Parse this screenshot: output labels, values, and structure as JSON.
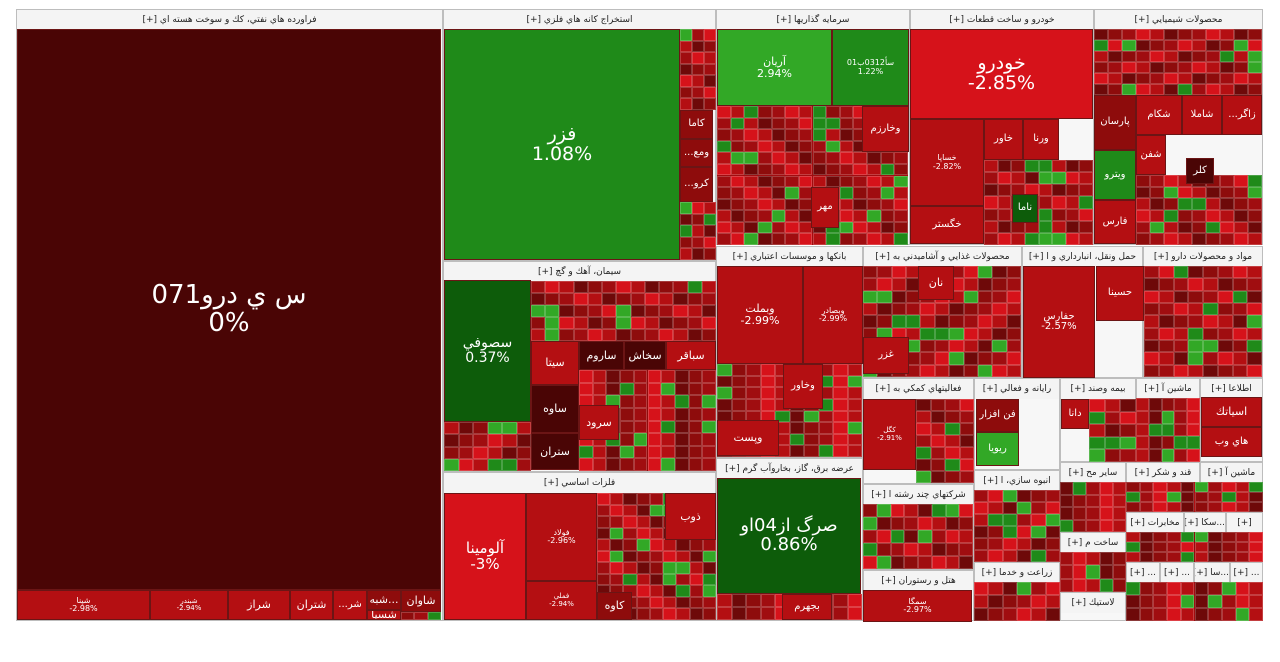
{
  "chart_data": {
    "type": "treemap",
    "colors": {
      "deep": "#4a0505",
      "dark": "#8e0c0c",
      "red": "#b40f12",
      "bright": "#d6121a",
      "lgreen": "#32a826",
      "green": "#1f8a19",
      "dgreen": "#0d5c0a"
    },
    "sectors": [
      {
        "name": "فراورده هاي نفتي، كك و سوخت هسته اي [+]",
        "box": [
          0,
          0
        ],
        "tiles": [
          {
            "name": "س ي درو071",
            "pct": "0%",
            "color": "deep",
            "fs": 26,
            "pos": [
              17,
              29,
              424,
              561
            ]
          },
          {
            "name": "شپنا",
            "pct": "-2.98%",
            "color": "red",
            "fs": 8,
            "pos": [
              17,
              590,
              133,
              30
            ]
          },
          {
            "name": "شبندر",
            "pct": "-2.94%",
            "color": "red",
            "fs": 7,
            "pos": [
              150,
              590,
              78,
              30
            ]
          },
          {
            "name": "شراز",
            "pct": "",
            "color": "red",
            "fs": 11,
            "pos": [
              228,
              590,
              62,
              30
            ]
          },
          {
            "name": "شتران",
            "pct": "",
            "color": "red",
            "fs": 11,
            "pos": [
              290,
              590,
              43,
              30
            ]
          },
          {
            "name": "...شر",
            "pct": "",
            "color": "red",
            "fs": 10,
            "pos": [
              333,
              590,
              34,
              30
            ]
          },
          {
            "name": "شبه...",
            "pct": "",
            "color": "dark",
            "fs": 11,
            "pos": [
              367,
              590,
              34,
              20
            ]
          },
          {
            "name": "شسپا",
            "pct": "",
            "color": "red",
            "fs": 11,
            "pos": [
              367,
              610,
              34,
              10
            ]
          },
          {
            "name": "شاوان",
            "pct": "",
            "color": "dark",
            "fs": 11,
            "pos": [
              401,
              590,
              40,
              22
            ]
          }
        ]
      },
      {
        "name": "استخراج كانه هاي فلزي [+]",
        "tiles": [
          {
            "name": "فزر",
            "pct": "1.08%",
            "color": "green",
            "fs": 19,
            "pos": [
              444,
              29,
              236,
              231
            ]
          },
          {
            "name": "كاما",
            "pct": "",
            "color": "dark",
            "fs": 10,
            "pos": [
              680,
              110,
              33,
              29
            ]
          },
          {
            "name": "...ومع",
            "pct": "",
            "color": "dark",
            "fs": 10,
            "pos": [
              680,
              139,
              33,
              28
            ]
          },
          {
            "name": "...كرو",
            "pct": "",
            "color": "dark",
            "fs": 10,
            "pos": [
              680,
              167,
              33,
              35
            ]
          }
        ]
      },
      {
        "name": "سرمايه گذاريها [+]",
        "tiles": [
          {
            "name": "آريان",
            "pct": "2.94%",
            "color": "lgreen",
            "fs": 11,
            "pos": [
              717,
              29,
              115,
              77
            ]
          },
          {
            "name": "سأ0312ب01",
            "pct": "1.22%",
            "color": "green",
            "fs": 8,
            "pos": [
              832,
              29,
              77,
              77
            ]
          },
          {
            "name": "وخارزم",
            "pct": "",
            "color": "red",
            "fs": 10,
            "pos": [
              862,
              106,
              47,
              46
            ]
          },
          {
            "name": "مهر",
            "pct": "",
            "color": "red",
            "fs": 10,
            "pos": [
              811,
              187,
              28,
              41
            ]
          }
        ]
      },
      {
        "name": "خودرو و ساخت قطعات [+]",
        "tiles": [
          {
            "name": "خودرو",
            "pct": "-2.85%",
            "color": "bright",
            "fs": 19,
            "pos": [
              910,
              29,
              183,
              90
            ]
          },
          {
            "name": "خساپا",
            "pct": "-2.82%",
            "color": "red",
            "fs": 8,
            "pos": [
              910,
              119,
              74,
              87
            ]
          },
          {
            "name": "خاور",
            "pct": "",
            "color": "red",
            "fs": 10,
            "pos": [
              984,
              119,
              39,
              41
            ]
          },
          {
            "name": "ورنا",
            "pct": "",
            "color": "red",
            "fs": 10,
            "pos": [
              1023,
              119,
              36,
              41
            ]
          },
          {
            "name": "خگستر",
            "pct": "",
            "color": "red",
            "fs": 10,
            "pos": [
              910,
              206,
              74,
              38
            ]
          },
          {
            "name": "ناما",
            "pct": "",
            "color": "dgreen",
            "fs": 10,
            "pos": [
              1012,
              194,
              26,
              29
            ]
          }
        ]
      },
      {
        "name": "محصولات شيميايي [+]",
        "tiles": [
          {
            "name": "پارسان",
            "pct": "",
            "color": "dark",
            "fs": 10,
            "pos": [
              1094,
              95,
              42,
              55
            ]
          },
          {
            "name": "شكام",
            "pct": "",
            "color": "red",
            "fs": 10,
            "pos": [
              1136,
              95,
              46,
              40
            ]
          },
          {
            "name": "شاملا",
            "pct": "",
            "color": "red",
            "fs": 10,
            "pos": [
              1182,
              95,
              40,
              40
            ]
          },
          {
            "name": "...زاگر",
            "pct": "",
            "color": "red",
            "fs": 10,
            "pos": [
              1222,
              95,
              40,
              40
            ]
          },
          {
            "name": "شفن",
            "pct": "",
            "color": "red",
            "fs": 10,
            "pos": [
              1136,
              135,
              30,
              40
            ]
          },
          {
            "name": "ويترو",
            "pct": "",
            "color": "green",
            "fs": 10,
            "pos": [
              1094,
              150,
              42,
              50
            ]
          },
          {
            "name": "كلر",
            "pct": "",
            "color": "deep",
            "fs": 10,
            "pos": [
              1186,
              158,
              28,
              26
            ]
          },
          {
            "name": "فارس",
            "pct": "",
            "color": "red",
            "fs": 10,
            "pos": [
              1094,
              200,
              42,
              44
            ]
          }
        ]
      },
      {
        "name": "سيمان، آهك و گچ [+]",
        "tiles": [
          {
            "name": "سصوفي",
            "pct": "0.37%",
            "color": "dgreen",
            "fs": 14,
            "pos": [
              444,
              280,
              87,
              142
            ]
          },
          {
            "name": "سيتا",
            "pct": "",
            "color": "red",
            "fs": 11,
            "pos": [
              531,
              341,
              48,
              44
            ]
          },
          {
            "name": "ساروم",
            "pct": "",
            "color": "deep",
            "fs": 11,
            "pos": [
              579,
              341,
              45,
              29
            ]
          },
          {
            "name": "سخاش",
            "pct": "",
            "color": "deep",
            "fs": 11,
            "pos": [
              624,
              341,
              42,
              29
            ]
          },
          {
            "name": "سباقر",
            "pct": "",
            "color": "red",
            "fs": 11,
            "pos": [
              666,
              341,
              50,
              29
            ]
          },
          {
            "name": "ساوه",
            "pct": "",
            "color": "deep",
            "fs": 11,
            "pos": [
              531,
              385,
              48,
              48
            ]
          },
          {
            "name": "سرود",
            "pct": "",
            "color": "red",
            "fs": 11,
            "pos": [
              579,
              405,
              40,
              35
            ]
          },
          {
            "name": "ستران",
            "pct": "",
            "color": "deep",
            "fs": 11,
            "pos": [
              531,
              433,
              48,
              37
            ]
          }
        ]
      },
      {
        "name": "بانكها و موسسات اعتباري [+]",
        "tiles": [
          {
            "name": "وبملت",
            "pct": "-2.99%",
            "color": "red",
            "fs": 11,
            "pos": [
              717,
              266,
              86,
              98
            ]
          },
          {
            "name": "وبصادر",
            "pct": "-2.99%",
            "color": "red",
            "fs": 8,
            "pos": [
              803,
              266,
              60,
              98
            ]
          },
          {
            "name": "وخاور",
            "pct": "",
            "color": "red",
            "fs": 10,
            "pos": [
              783,
              364,
              40,
              45
            ]
          },
          {
            "name": "وپست",
            "pct": "",
            "color": "red",
            "fs": 11,
            "pos": [
              717,
              420,
              62,
              36
            ]
          }
        ]
      },
      {
        "name": "فلزات اساسي [+]",
        "tiles": [
          {
            "name": "آلومينا",
            "pct": "-3%",
            "color": "bright",
            "fs": 15,
            "pos": [
              444,
              493,
              82,
              127
            ]
          },
          {
            "name": "فولاد",
            "pct": "-2.96%",
            "color": "red",
            "fs": 8,
            "pos": [
              526,
              493,
              71,
              88
            ]
          },
          {
            "name": "فملي",
            "pct": "-2.94%",
            "color": "red",
            "fs": 7,
            "pos": [
              526,
              581,
              71,
              39
            ]
          },
          {
            "name": "ذوب",
            "pct": "",
            "color": "red",
            "fs": 11,
            "pos": [
              665,
              493,
              51,
              47
            ]
          },
          {
            "name": "كاوه",
            "pct": "",
            "color": "dark",
            "fs": 11,
            "pos": [
              597,
              592,
              35,
              28
            ]
          }
        ]
      },
      {
        "name": "عرضه برق، گاز، بخاروآب گرم [+]",
        "tiles": [
          {
            "name": "صرگ از04او",
            "pct": "0.86%",
            "color": "dgreen",
            "fs": 18,
            "pos": [
              717,
              478,
              144,
              116
            ]
          },
          {
            "name": "بجهرم",
            "pct": "",
            "color": "red",
            "fs": 10,
            "pos": [
              782,
              594,
              50,
              26
            ]
          }
        ]
      },
      {
        "name": "محصولات غذايي و آشاميدني به [+]",
        "tiles": [
          {
            "name": "نان",
            "pct": "",
            "color": "red",
            "fs": 11,
            "pos": [
              918,
              266,
              36,
              34
            ]
          },
          {
            "name": "غزر",
            "pct": "",
            "color": "red",
            "fs": 10,
            "pos": [
              863,
              337,
              46,
              37
            ]
          }
        ]
      },
      {
        "name": "حمل ونقل، انبارداري و ا [+]",
        "tiles": [
          {
            "name": "حفارس",
            "pct": "-2.57%",
            "color": "red",
            "fs": 10,
            "pos": [
              1023,
              266,
              72,
              112
            ]
          }
        ]
      },
      {
        "name": "مواد و محصولات دارو [+]",
        "tiles": [
          {
            "name": "حسينا",
            "pct": "",
            "color": "red",
            "fs": 10,
            "pos": [
              1096,
              266,
              48,
              55
            ]
          }
        ]
      },
      {
        "name": "فعاليتهاي كمكي به [+]",
        "tiles": [
          {
            "name": "كگل",
            "pct": "-2.91%",
            "color": "red",
            "fs": 7,
            "pos": [
              863,
              399,
              53,
              71
            ]
          }
        ]
      },
      {
        "name": "رايانه و فعالي [+]",
        "tiles": [
          {
            "name": "فن افزار",
            "pct": "",
            "color": "dark",
            "fs": 10,
            "pos": [
              976,
              399,
              43,
              33
            ]
          },
          {
            "name": "ريويا",
            "pct": "",
            "color": "lgreen",
            "fs": 10,
            "pos": [
              976,
              432,
              43,
              34
            ]
          }
        ]
      },
      {
        "name": "بيمه وصند [+]",
        "tiles": [
          {
            "name": "دانا",
            "pct": "",
            "color": "red",
            "fs": 10,
            "pos": [
              1061,
              399,
              28,
              30
            ]
          }
        ]
      },
      {
        "name": "اطلاعا [+]",
        "tiles": [
          {
            "name": "اسياتك",
            "pct": "",
            "color": "red",
            "fs": 11,
            "pos": [
              1201,
              397,
              61,
              30
            ]
          },
          {
            "name": "هاي وب",
            "pct": "",
            "color": "red",
            "fs": 10,
            "pos": [
              1201,
              427,
              61,
              30
            ]
          }
        ]
      },
      {
        "name": "هتل و رستوران [+]",
        "tiles": [
          {
            "name": "سمگا",
            "pct": "-2.97%",
            "color": "red",
            "fs": 8,
            "pos": [
              863,
              590,
              109,
              32
            ]
          }
        ]
      }
    ]
  },
  "headers": {
    "h01": "فراورده هاي نفتي، كك و سوخت هسته اي [+]",
    "h02": "استخراج كانه هاي فلزي [+]",
    "h03": "سرمايه گذاريها [+]",
    "h04": "خودرو و ساخت قطعات [+]",
    "h05": "محصولات شيميايي [+]",
    "h06": "سيمان، آهك و گچ [+]",
    "h07": "بانكها و موسسات اعتباري [+]",
    "h08": "محصولات غذايي و آشاميدني به [+]",
    "h09": "حمل ونقل، انبارداري و ا [+]",
    "h10": "مواد و محصولات دارو [+]",
    "h11": "فلزات اساسي [+]",
    "h12": "عرضه برق، گاز، بخاروآب گرم [+]",
    "h13": "فعاليتهاي كمكي به [+]",
    "h14": "رايانه و فعالي [+]",
    "h15": "بيمه وصند [+]",
    "h16": "ماشين آ [+]",
    "h17": "اطلاعا [+]",
    "h18": "شركتهاي چند رشته ا [+]",
    "h19": "انبوه سازي، ا [+]",
    "h20": "ساير مح [+]",
    "h21": "قند و شكر [+]",
    "h22": "ماشين آ [+]",
    "h23": "ساخت م [+]",
    "h24": "مخابرات [+]",
    "h25": "زراعت و خدما [+]",
    "h26": "هتل و رستوران [+]",
    "h27": "لاستيك [+]"
  }
}
